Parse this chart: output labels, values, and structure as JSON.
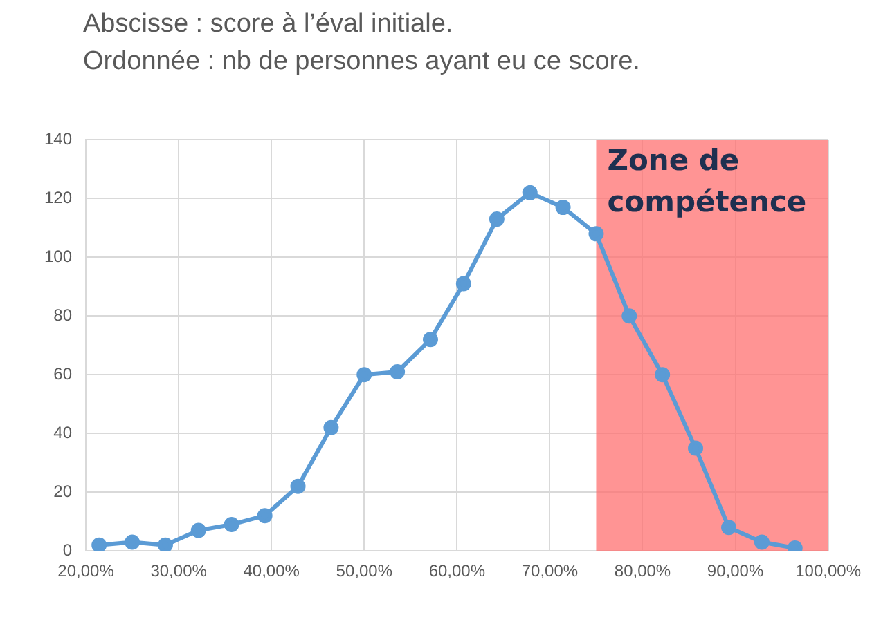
{
  "chart_data": {
    "type": "line",
    "title": "Abscisse : score à l’éval initiale.",
    "subtitle": "Ordonnée : nb de personnes ayant eu ce score.",
    "x": [
      21.43,
      25,
      28.57,
      32.14,
      35.71,
      39.29,
      42.86,
      46.43,
      50,
      53.57,
      57.14,
      60.71,
      64.29,
      67.86,
      71.43,
      75,
      78.57,
      82.14,
      85.71,
      89.29,
      92.86,
      96.43
    ],
    "series": [
      {
        "color": "#5b9bd5",
        "values": [
          2,
          3,
          2,
          7,
          9,
          12,
          22,
          42,
          60,
          61,
          72,
          91,
          113,
          122,
          117,
          108,
          80,
          60,
          35,
          8,
          3,
          1
        ]
      }
    ],
    "xlim": [
      20,
      100
    ],
    "xticks": [
      {
        "value": 20,
        "label": "20,00%"
      },
      {
        "value": 30,
        "label": "30,00%"
      },
      {
        "value": 40,
        "label": "40,00%"
      },
      {
        "value": 50,
        "label": "50,00%"
      },
      {
        "value": 60,
        "label": "60,00%"
      },
      {
        "value": 70,
        "label": "70,00%"
      },
      {
        "value": 80,
        "label": "80,00%"
      },
      {
        "value": 90,
        "label": "90,00%"
      },
      {
        "value": 100,
        "label": "100,00%"
      }
    ],
    "ylim": [
      0,
      140
    ],
    "yticks": [
      0,
      20,
      40,
      60,
      80,
      100,
      120,
      140
    ],
    "bands": [
      {
        "axis": "x",
        "from": 75,
        "to": 100,
        "label": "Zone de compétence",
        "color": "#ff6b6b"
      }
    ],
    "grid": true,
    "legend": false,
    "marker": "circle",
    "line_style": "solid"
  }
}
